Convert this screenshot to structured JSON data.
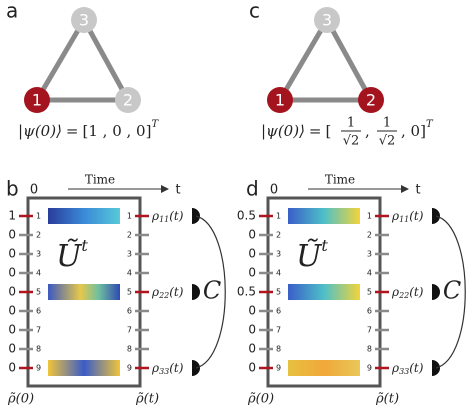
{
  "panels": [
    {
      "label": "a",
      "nodes": [
        {
          "label": "3",
          "color": "#c8c8c8"
        },
        {
          "label": "1",
          "color": "#a3141e"
        },
        {
          "label": "2",
          "color": "#c8c8c8"
        }
      ],
      "state": {
        "ket": "|ψ(0)⟩",
        "eq": "=",
        "vector": "[1 , 0 , 0]",
        "sup": "T"
      }
    },
    {
      "label": "c",
      "nodes": [
        {
          "label": "3",
          "color": "#c8c8c8"
        },
        {
          "label": "1",
          "color": "#a3141e"
        },
        {
          "label": "2",
          "color": "#a3141e"
        }
      ],
      "state": {
        "ket": "|ψ(0)⟩",
        "eq": "=",
        "open": "[",
        "fractions": [
          {
            "num": "1",
            "den": "√2"
          },
          {
            "num": "1",
            "den": "√2"
          }
        ],
        "sep": ",",
        "close": ", 0]",
        "sup": "T"
      }
    }
  ],
  "circuits": [
    {
      "label": "b",
      "start": "0",
      "axis": "Time",
      "end": "t",
      "operator": "Ũ",
      "operator_sup": "t",
      "ports": [
        "1",
        "2",
        "3",
        "4",
        "5",
        "6",
        "7",
        "8",
        "9"
      ],
      "inputs": [
        "1",
        "0",
        "0",
        "0",
        "0",
        "0",
        "0",
        "0",
        "0"
      ],
      "outputs": [
        {
          "symbol": "ρ",
          "sub": "11",
          "arg": "(t)"
        },
        {
          "symbol": "ρ",
          "sub": "22",
          "arg": "(t)"
        },
        {
          "symbol": "ρ",
          "sub": "33",
          "arg": "(t)"
        }
      ],
      "coupling": "C",
      "in_label": "ρ̃(0)",
      "out_label": "ρ̃(t)"
    },
    {
      "label": "d",
      "start": "0",
      "axis": "Time",
      "end": "t",
      "operator": "Ũ",
      "operator_sup": "t",
      "ports": [
        "1",
        "2",
        "3",
        "4",
        "5",
        "6",
        "7",
        "8",
        "9"
      ],
      "inputs": [
        "0.5",
        "0",
        "0",
        "0",
        "0.5",
        "0",
        "0",
        "0",
        "0"
      ],
      "outputs": [
        {
          "symbol": "ρ",
          "sub": "11",
          "arg": "(t)"
        },
        {
          "symbol": "ρ",
          "sub": "22",
          "arg": "(t)"
        },
        {
          "symbol": "ρ",
          "sub": "33",
          "arg": "(t)"
        }
      ],
      "coupling": "C",
      "in_label": "ρ̃(0)",
      "out_label": "ρ̃(t)"
    }
  ]
}
